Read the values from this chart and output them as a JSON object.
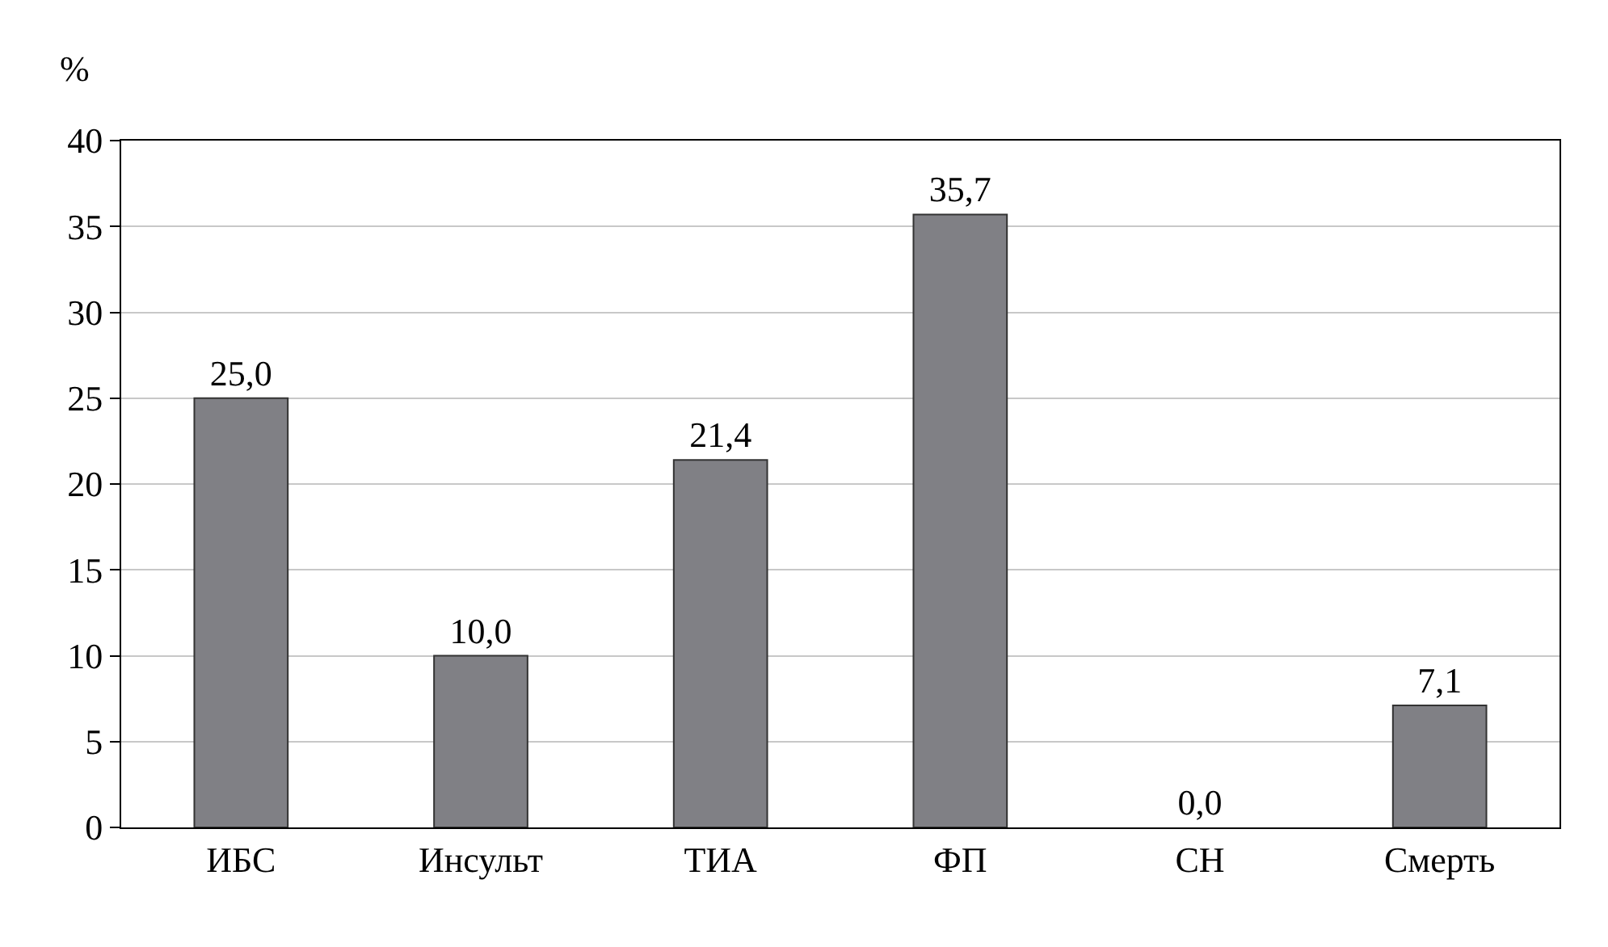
{
  "chart_data": {
    "type": "bar",
    "ylabel": "%",
    "categories": [
      "ИБС",
      "Инсульт",
      "ТИА",
      "ФП",
      "СН",
      "Смерть"
    ],
    "values": [
      25.0,
      10.0,
      21.4,
      35.7,
      0.0,
      7.1
    ],
    "value_labels": [
      "25,0",
      "10,0",
      "21,4",
      "35,7",
      "0,0",
      "7,1"
    ],
    "color": "#808085",
    "ylim": [
      0,
      40
    ],
    "yticks": [
      0,
      5,
      10,
      15,
      20,
      25,
      30,
      35,
      40
    ],
    "grid": "y"
  }
}
